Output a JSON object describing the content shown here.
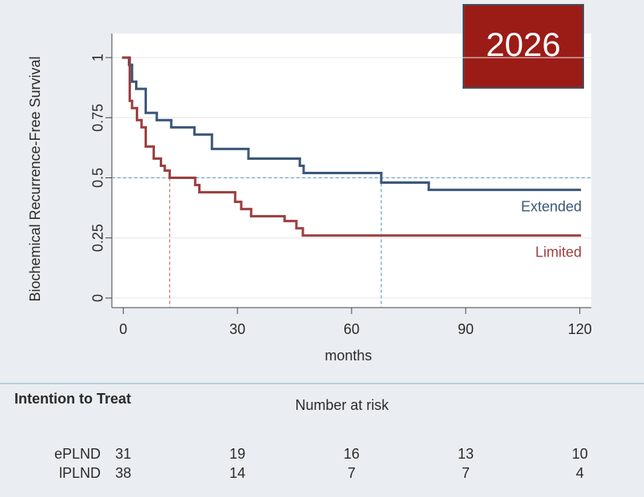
{
  "chart_data": {
    "type": "step",
    "ylabel": "Biochemical Recurrence-Free Survival",
    "xlabel": "months",
    "xlim": [
      -3,
      123
    ],
    "ylim": [
      -0.04,
      1.1
    ],
    "xticks": [
      0,
      30,
      60,
      90,
      120
    ],
    "yticks": [
      0,
      0.25,
      0.5,
      0.75,
      1
    ],
    "grid": true,
    "hline": {
      "value": 0.5,
      "color": "#6fa8d6"
    },
    "vlines": [
      {
        "value": 12.2,
        "color": "#c97a7a"
      },
      {
        "value": 67.8,
        "color": "#6fa8d6"
      }
    ],
    "series": [
      {
        "name": "Extended",
        "color": "#3b5878",
        "x": [
          0,
          1.5,
          2.3,
          3.4,
          5.9,
          8.8,
          12.6,
          18.7,
          23.3,
          32.9,
          46.4,
          47.4,
          67.8,
          80.3,
          120
        ],
        "values": [
          1,
          0.97,
          0.9,
          0.87,
          0.77,
          0.74,
          0.71,
          0.68,
          0.62,
          0.58,
          0.55,
          0.52,
          0.48,
          0.45,
          0.45
        ]
      },
      {
        "name": "Limited",
        "color": "#9c3f3f",
        "x": [
          0,
          1.7,
          2.3,
          3.6,
          4.8,
          5.9,
          8.0,
          9.9,
          10.9,
          12.2,
          18.9,
          20,
          29.4,
          31,
          33.6,
          42.4,
          45.5,
          47.2,
          120
        ],
        "values": [
          1,
          0.82,
          0.79,
          0.74,
          0.71,
          0.63,
          0.58,
          0.55,
          0.53,
          0.5,
          0.47,
          0.44,
          0.4,
          0.37,
          0.34,
          0.32,
          0.29,
          0.26,
          0.26
        ]
      }
    ],
    "risk_table": {
      "heading": "Intention to Treat",
      "title": "Number at risk",
      "rows": [
        {
          "name": "ePLND",
          "values": [
            31,
            19,
            16,
            13,
            10
          ]
        },
        {
          "name": "lPLND",
          "values": [
            38,
            14,
            7,
            7,
            4
          ]
        }
      ]
    }
  },
  "badge": {
    "text": "2026",
    "color": "#9b1c17"
  }
}
